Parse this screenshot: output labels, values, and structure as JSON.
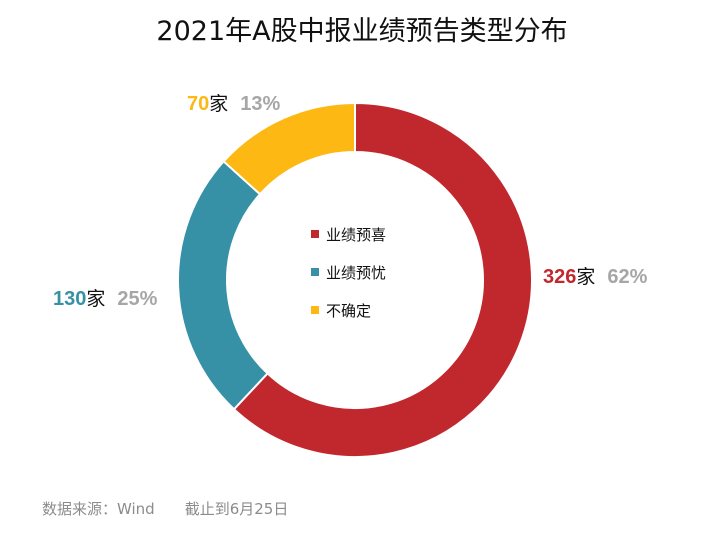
{
  "chart_data": {
    "type": "pie",
    "title": "2021年A股中报业绩预告类型分布",
    "unit": "家",
    "slices": [
      {
        "label": "业绩预喜",
        "value": 326,
        "percent": "62%",
        "color": "#c0282e"
      },
      {
        "label": "业绩预忧",
        "value": 130,
        "percent": "25%",
        "color": "#3690a6"
      },
      {
        "label": "不确定",
        "value": 70,
        "percent": "13%",
        "color": "#fdb813"
      }
    ],
    "legend_placement": "center",
    "donut": true
  },
  "source": "数据来源：Wind　　截止到6月25日"
}
